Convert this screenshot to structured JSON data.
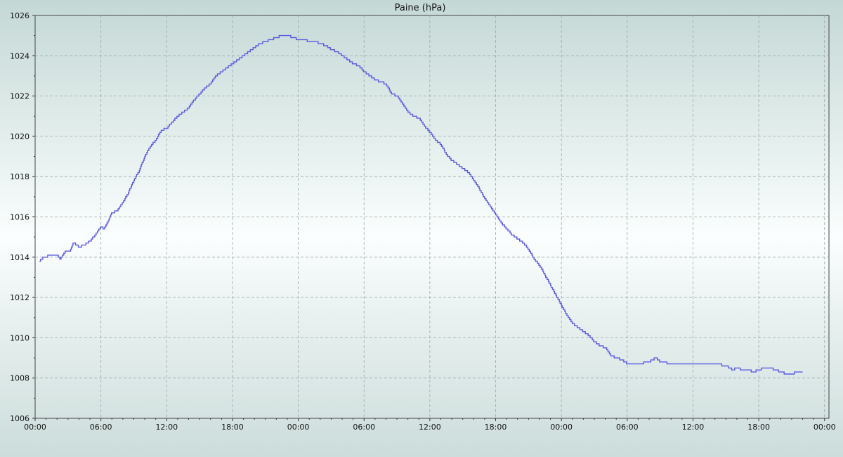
{
  "chart_data": {
    "type": "line",
    "title": "Paine (hPa)",
    "xlabel": "",
    "ylabel": "",
    "x_tick_labels": [
      "00:00",
      "06:00",
      "12:00",
      "18:00",
      "00:00",
      "06:00",
      "12:00",
      "18:00",
      "00:00",
      "06:00",
      "12:00",
      "18:00",
      "00:00"
    ],
    "x_range_hours": [
      0,
      72.4
    ],
    "ylim": [
      1006,
      1026
    ],
    "y_ticks": [
      1006,
      1008,
      1010,
      1012,
      1014,
      1016,
      1018,
      1020,
      1022,
      1024,
      1026
    ],
    "grid": true,
    "line_color": "#5a5ae0",
    "series": [
      {
        "points": [
          [
            0.4,
            1013.8
          ],
          [
            0.8,
            1014.0
          ],
          [
            1.5,
            1014.1
          ],
          [
            2.0,
            1014.1
          ],
          [
            2.3,
            1013.9
          ],
          [
            2.8,
            1014.3
          ],
          [
            3.2,
            1014.3
          ],
          [
            3.5,
            1014.7
          ],
          [
            4.0,
            1014.5
          ],
          [
            4.5,
            1014.6
          ],
          [
            5.0,
            1014.8
          ],
          [
            5.5,
            1015.1
          ],
          [
            6.0,
            1015.5
          ],
          [
            6.3,
            1015.4
          ],
          [
            6.7,
            1015.8
          ],
          [
            7.0,
            1016.2
          ],
          [
            7.5,
            1016.3
          ],
          [
            8.0,
            1016.7
          ],
          [
            8.5,
            1017.2
          ],
          [
            9.0,
            1017.8
          ],
          [
            9.5,
            1018.3
          ],
          [
            10.0,
            1019.0
          ],
          [
            10.5,
            1019.5
          ],
          [
            11.0,
            1019.8
          ],
          [
            11.5,
            1020.3
          ],
          [
            12.0,
            1020.4
          ],
          [
            12.5,
            1020.7
          ],
          [
            13.0,
            1021.0
          ],
          [
            13.5,
            1021.2
          ],
          [
            14.0,
            1021.4
          ],
          [
            14.5,
            1021.8
          ],
          [
            15.0,
            1022.1
          ],
          [
            15.5,
            1022.4
          ],
          [
            16.0,
            1022.6
          ],
          [
            16.5,
            1023.0
          ],
          [
            17.0,
            1023.2
          ],
          [
            17.5,
            1023.4
          ],
          [
            18.0,
            1023.6
          ],
          [
            18.5,
            1023.8
          ],
          [
            19.0,
            1024.0
          ],
          [
            19.5,
            1024.2
          ],
          [
            20.0,
            1024.4
          ],
          [
            20.5,
            1024.6
          ],
          [
            21.0,
            1024.7
          ],
          [
            21.5,
            1024.8
          ],
          [
            22.0,
            1024.9
          ],
          [
            22.5,
            1025.0
          ],
          [
            23.0,
            1025.0
          ],
          [
            23.5,
            1024.9
          ],
          [
            24.0,
            1024.8
          ],
          [
            24.5,
            1024.8
          ],
          [
            25.0,
            1024.7
          ],
          [
            25.5,
            1024.7
          ],
          [
            26.0,
            1024.6
          ],
          [
            26.5,
            1024.5
          ],
          [
            27.0,
            1024.3
          ],
          [
            27.5,
            1024.2
          ],
          [
            28.0,
            1024.0
          ],
          [
            28.5,
            1023.8
          ],
          [
            29.0,
            1023.6
          ],
          [
            29.5,
            1023.5
          ],
          [
            30.0,
            1023.2
          ],
          [
            30.5,
            1023.0
          ],
          [
            31.0,
            1022.8
          ],
          [
            31.5,
            1022.7
          ],
          [
            32.0,
            1022.6
          ],
          [
            32.5,
            1022.1
          ],
          [
            33.0,
            1022.0
          ],
          [
            33.5,
            1021.6
          ],
          [
            34.0,
            1021.2
          ],
          [
            34.5,
            1021.0
          ],
          [
            35.0,
            1020.9
          ],
          [
            35.5,
            1020.5
          ],
          [
            36.0,
            1020.2
          ],
          [
            36.5,
            1019.8
          ],
          [
            37.0,
            1019.6
          ],
          [
            37.5,
            1019.1
          ],
          [
            38.0,
            1018.8
          ],
          [
            38.5,
            1018.6
          ],
          [
            39.0,
            1018.4
          ],
          [
            39.5,
            1018.2
          ],
          [
            40.0,
            1017.8
          ],
          [
            40.5,
            1017.4
          ],
          [
            41.0,
            1016.9
          ],
          [
            41.5,
            1016.5
          ],
          [
            42.0,
            1016.1
          ],
          [
            42.5,
            1015.7
          ],
          [
            43.0,
            1015.4
          ],
          [
            43.5,
            1015.1
          ],
          [
            44.0,
            1014.9
          ],
          [
            44.5,
            1014.7
          ],
          [
            45.0,
            1014.4
          ],
          [
            45.5,
            1013.9
          ],
          [
            46.0,
            1013.6
          ],
          [
            46.5,
            1013.1
          ],
          [
            47.0,
            1012.6
          ],
          [
            47.5,
            1012.1
          ],
          [
            48.0,
            1011.6
          ],
          [
            48.5,
            1011.1
          ],
          [
            49.0,
            1010.7
          ],
          [
            49.5,
            1010.5
          ],
          [
            50.0,
            1010.3
          ],
          [
            50.5,
            1010.1
          ],
          [
            51.0,
            1009.8
          ],
          [
            51.5,
            1009.6
          ],
          [
            52.0,
            1009.5
          ],
          [
            52.5,
            1009.1
          ],
          [
            53.0,
            1009.0
          ],
          [
            53.5,
            1008.9
          ],
          [
            54.0,
            1008.7
          ],
          [
            55.0,
            1008.7
          ],
          [
            56.0,
            1008.8
          ],
          [
            56.6,
            1009.0
          ],
          [
            57.0,
            1008.8
          ],
          [
            58.0,
            1008.7
          ],
          [
            59.0,
            1008.7
          ],
          [
            60.0,
            1008.7
          ],
          [
            61.0,
            1008.7
          ],
          [
            62.0,
            1008.7
          ],
          [
            63.0,
            1008.6
          ],
          [
            63.6,
            1008.4
          ],
          [
            64.0,
            1008.5
          ],
          [
            64.5,
            1008.4
          ],
          [
            65.0,
            1008.4
          ],
          [
            65.5,
            1008.3
          ],
          [
            66.0,
            1008.4
          ],
          [
            66.5,
            1008.5
          ],
          [
            67.0,
            1008.5
          ],
          [
            67.5,
            1008.4
          ],
          [
            68.0,
            1008.3
          ],
          [
            68.5,
            1008.2
          ],
          [
            69.0,
            1008.2
          ],
          [
            69.5,
            1008.3
          ],
          [
            70.0,
            1008.3
          ]
        ]
      }
    ]
  }
}
